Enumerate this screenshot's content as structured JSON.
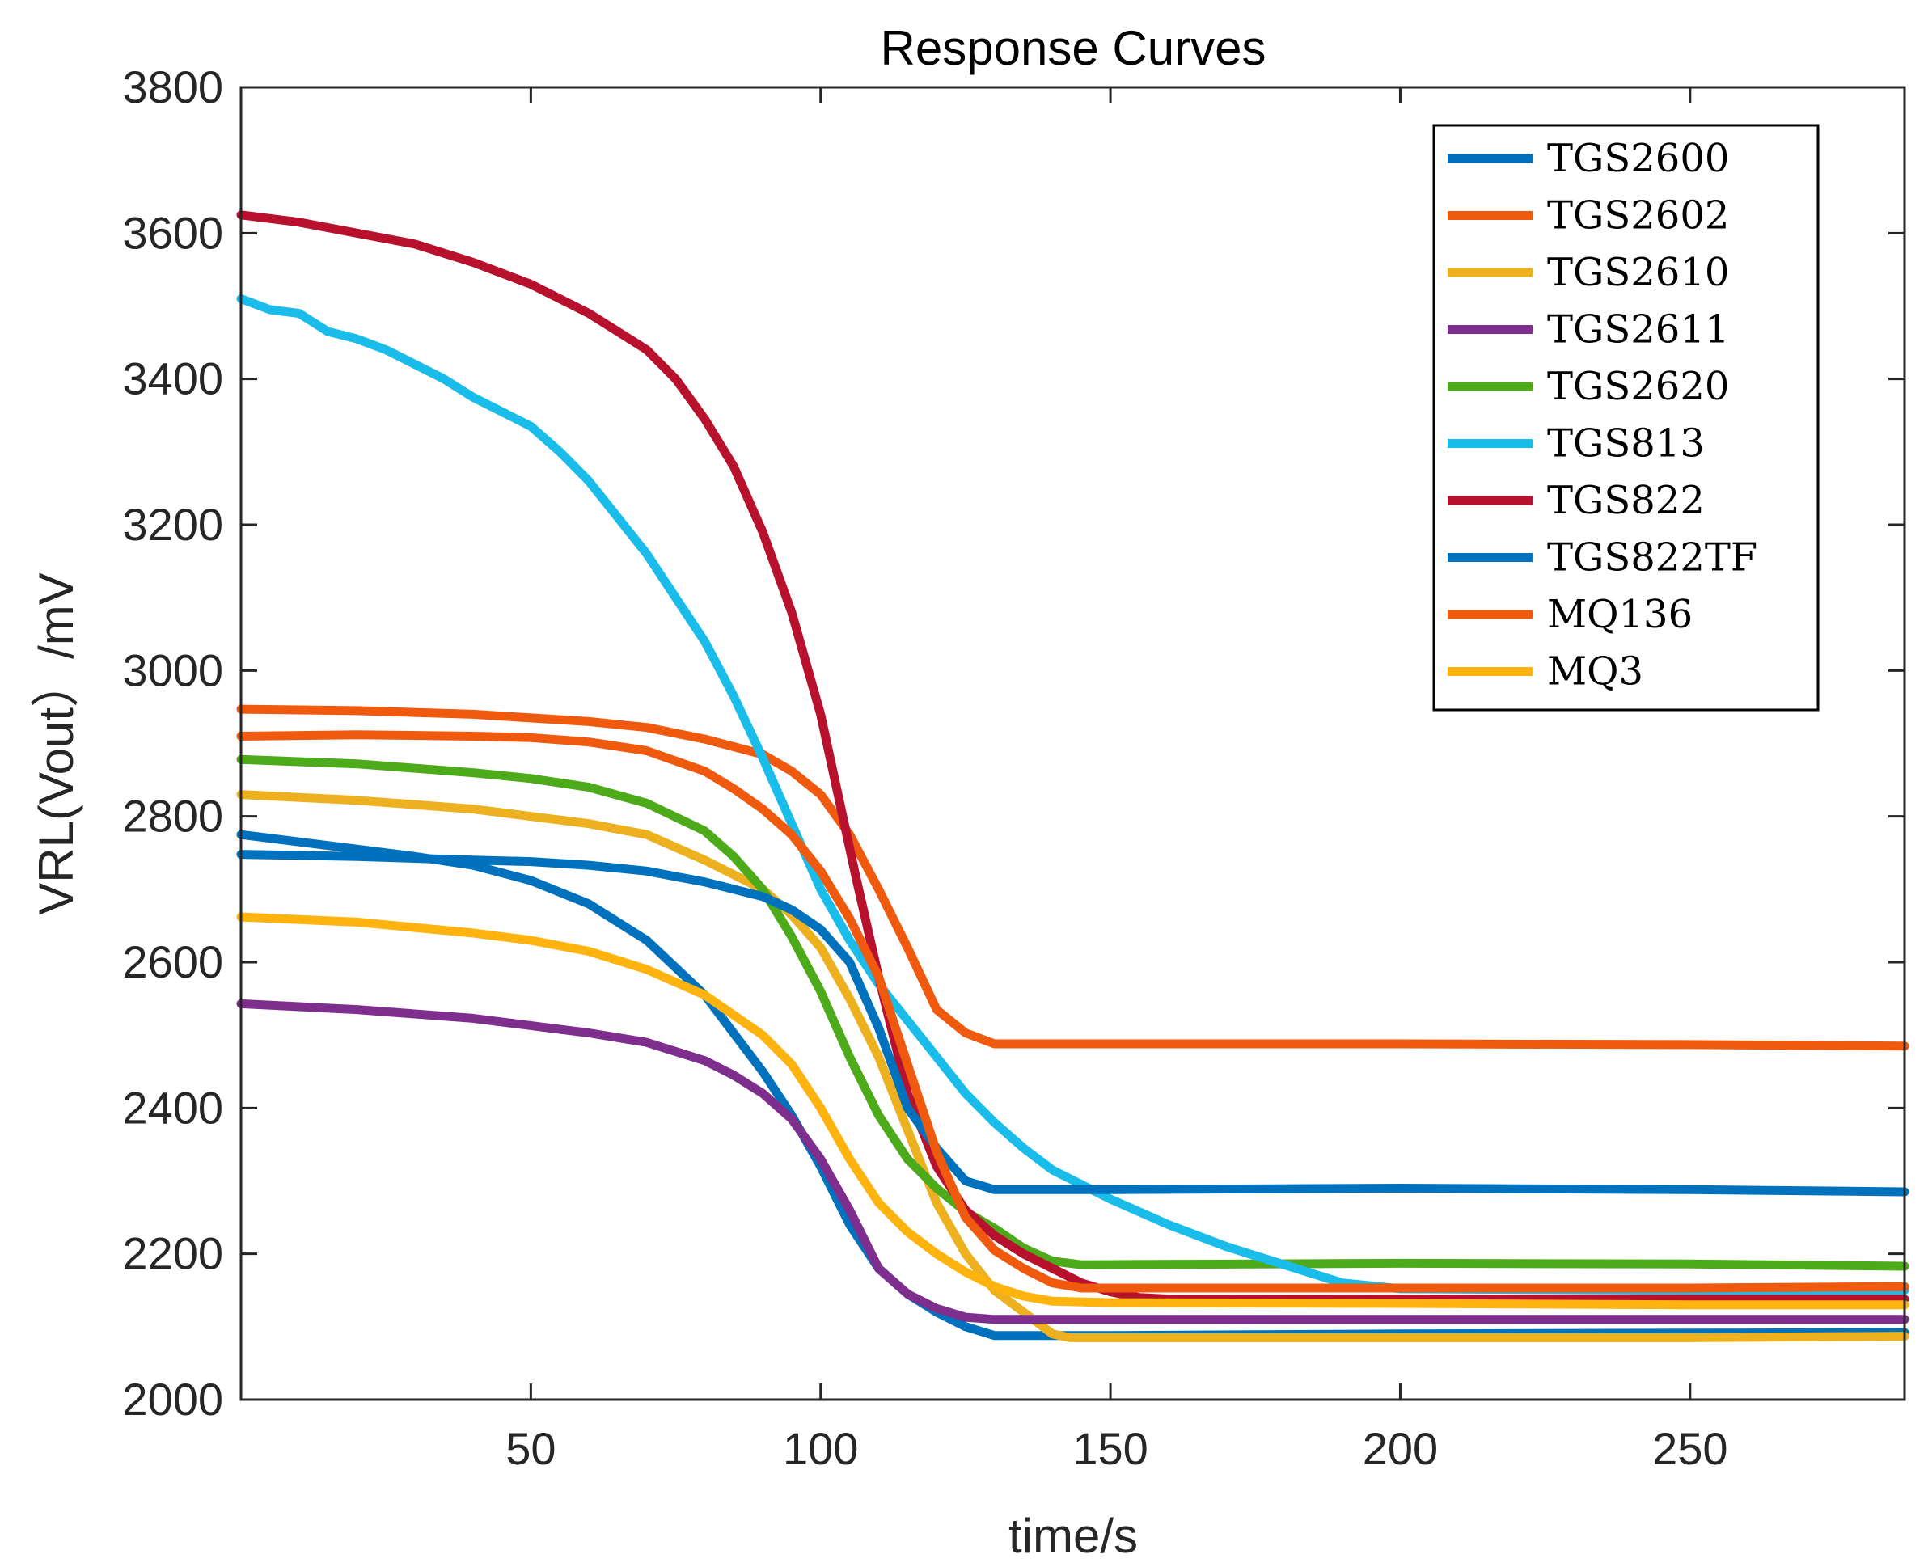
{
  "chart_data": {
    "type": "line",
    "title": "Response Curves",
    "xlabel": "time/s",
    "ylabel": "VRL(Vout）/mV",
    "xlim": [
      0,
      287
    ],
    "ylim": [
      2000,
      3800
    ],
    "xticks": [
      50,
      100,
      150,
      200,
      250
    ],
    "yticks": [
      2000,
      2200,
      2400,
      2600,
      2800,
      3000,
      3200,
      3400,
      3600,
      3800
    ],
    "grid": false,
    "legend_position": "top-right",
    "series": [
      {
        "name": "TGS2600",
        "color": "#0072BD",
        "points": [
          [
            0,
            2775
          ],
          [
            10,
            2765
          ],
          [
            20,
            2755
          ],
          [
            30,
            2745
          ],
          [
            40,
            2733
          ],
          [
            50,
            2712
          ],
          [
            60,
            2680
          ],
          [
            70,
            2630
          ],
          [
            80,
            2555
          ],
          [
            90,
            2450
          ],
          [
            95,
            2390
          ],
          [
            100,
            2320
          ],
          [
            105,
            2240
          ],
          [
            110,
            2180
          ],
          [
            115,
            2145
          ],
          [
            120,
            2120
          ],
          [
            125,
            2100
          ],
          [
            130,
            2088
          ],
          [
            150,
            2088
          ],
          [
            200,
            2090
          ],
          [
            287,
            2092
          ]
        ]
      },
      {
        "name": "TGS2602",
        "color": "#F05A0F",
        "points": [
          [
            0,
            2947
          ],
          [
            20,
            2945
          ],
          [
            40,
            2940
          ],
          [
            60,
            2930
          ],
          [
            70,
            2922
          ],
          [
            80,
            2906
          ],
          [
            90,
            2885
          ],
          [
            95,
            2862
          ],
          [
            100,
            2830
          ],
          [
            105,
            2775
          ],
          [
            110,
            2700
          ],
          [
            115,
            2620
          ],
          [
            120,
            2535
          ],
          [
            125,
            2503
          ],
          [
            130,
            2488
          ],
          [
            150,
            2488
          ],
          [
            200,
            2488
          ],
          [
            250,
            2487
          ],
          [
            287,
            2485
          ]
        ]
      },
      {
        "name": "TGS2610",
        "color": "#EDB120",
        "points": [
          [
            0,
            2830
          ],
          [
            20,
            2822
          ],
          [
            40,
            2810
          ],
          [
            60,
            2790
          ],
          [
            70,
            2775
          ],
          [
            80,
            2740
          ],
          [
            90,
            2700
          ],
          [
            95,
            2665
          ],
          [
            100,
            2620
          ],
          [
            105,
            2550
          ],
          [
            110,
            2470
          ],
          [
            115,
            2370
          ],
          [
            120,
            2270
          ],
          [
            125,
            2200
          ],
          [
            130,
            2150
          ],
          [
            135,
            2120
          ],
          [
            140,
            2090
          ],
          [
            143,
            2085
          ],
          [
            200,
            2085
          ],
          [
            250,
            2085
          ],
          [
            287,
            2087
          ]
        ]
      },
      {
        "name": "TGS2611",
        "color": "#7E2F8E",
        "points": [
          [
            0,
            2543
          ],
          [
            20,
            2535
          ],
          [
            40,
            2523
          ],
          [
            60,
            2503
          ],
          [
            70,
            2490
          ],
          [
            80,
            2465
          ],
          [
            85,
            2445
          ],
          [
            90,
            2420
          ],
          [
            95,
            2385
          ],
          [
            100,
            2330
          ],
          [
            105,
            2260
          ],
          [
            110,
            2180
          ],
          [
            115,
            2145
          ],
          [
            120,
            2125
          ],
          [
            125,
            2113
          ],
          [
            130,
            2110
          ],
          [
            200,
            2110
          ],
          [
            287,
            2110
          ]
        ]
      },
      {
        "name": "TGS2620",
        "color": "#4DAA1A",
        "points": [
          [
            0,
            2878
          ],
          [
            20,
            2872
          ],
          [
            40,
            2860
          ],
          [
            50,
            2852
          ],
          [
            60,
            2840
          ],
          [
            70,
            2818
          ],
          [
            80,
            2780
          ],
          [
            85,
            2745
          ],
          [
            90,
            2700
          ],
          [
            95,
            2635
          ],
          [
            100,
            2560
          ],
          [
            105,
            2470
          ],
          [
            110,
            2390
          ],
          [
            115,
            2330
          ],
          [
            120,
            2290
          ],
          [
            125,
            2258
          ],
          [
            130,
            2235
          ],
          [
            135,
            2208
          ],
          [
            140,
            2190
          ],
          [
            145,
            2185
          ],
          [
            200,
            2187
          ],
          [
            250,
            2186
          ],
          [
            287,
            2183
          ]
        ]
      },
      {
        "name": "TGS813",
        "color": "#1ABCEA",
        "points": [
          [
            0,
            3510
          ],
          [
            5,
            3495
          ],
          [
            10,
            3490
          ],
          [
            15,
            3465
          ],
          [
            20,
            3455
          ],
          [
            25,
            3440
          ],
          [
            30,
            3420
          ],
          [
            35,
            3400
          ],
          [
            40,
            3375
          ],
          [
            45,
            3355
          ],
          [
            50,
            3335
          ],
          [
            55,
            3300
          ],
          [
            60,
            3260
          ],
          [
            65,
            3210
          ],
          [
            70,
            3160
          ],
          [
            75,
            3100
          ],
          [
            80,
            3040
          ],
          [
            85,
            2965
          ],
          [
            90,
            2880
          ],
          [
            95,
            2790
          ],
          [
            100,
            2700
          ],
          [
            105,
            2630
          ],
          [
            110,
            2570
          ],
          [
            115,
            2520
          ],
          [
            120,
            2470
          ],
          [
            125,
            2420
          ],
          [
            130,
            2380
          ],
          [
            135,
            2345
          ],
          [
            140,
            2315
          ],
          [
            145,
            2295
          ],
          [
            150,
            2275
          ],
          [
            160,
            2240
          ],
          [
            170,
            2210
          ],
          [
            180,
            2185
          ],
          [
            190,
            2160
          ],
          [
            200,
            2152
          ],
          [
            250,
            2150
          ],
          [
            287,
            2150
          ]
        ]
      },
      {
        "name": "TGS822",
        "color": "#B8112E",
        "points": [
          [
            0,
            3625
          ],
          [
            10,
            3615
          ],
          [
            20,
            3600
          ],
          [
            30,
            3585
          ],
          [
            40,
            3560
          ],
          [
            50,
            3530
          ],
          [
            60,
            3490
          ],
          [
            70,
            3440
          ],
          [
            75,
            3400
          ],
          [
            80,
            3345
          ],
          [
            85,
            3280
          ],
          [
            90,
            3190
          ],
          [
            95,
            3080
          ],
          [
            100,
            2940
          ],
          [
            103,
            2830
          ],
          [
            106,
            2720
          ],
          [
            110,
            2580
          ],
          [
            115,
            2420
          ],
          [
            120,
            2320
          ],
          [
            125,
            2260
          ],
          [
            130,
            2225
          ],
          [
            135,
            2200
          ],
          [
            140,
            2180
          ],
          [
            145,
            2160
          ],
          [
            150,
            2148
          ],
          [
            155,
            2140
          ],
          [
            160,
            2138
          ],
          [
            200,
            2138
          ],
          [
            250,
            2138
          ],
          [
            287,
            2138
          ]
        ]
      },
      {
        "name": "TGS822TF",
        "color": "#0072BD",
        "points": [
          [
            0,
            2748
          ],
          [
            20,
            2745
          ],
          [
            40,
            2740
          ],
          [
            50,
            2738
          ],
          [
            60,
            2733
          ],
          [
            70,
            2725
          ],
          [
            80,
            2710
          ],
          [
            90,
            2690
          ],
          [
            95,
            2672
          ],
          [
            100,
            2645
          ],
          [
            105,
            2600
          ],
          [
            110,
            2510
          ],
          [
            115,
            2400
          ],
          [
            120,
            2345
          ],
          [
            125,
            2300
          ],
          [
            130,
            2288
          ],
          [
            150,
            2288
          ],
          [
            200,
            2290
          ],
          [
            250,
            2288
          ],
          [
            287,
            2285
          ]
        ]
      },
      {
        "name": "MQ136",
        "color": "#F05A0F",
        "points": [
          [
            0,
            2910
          ],
          [
            20,
            2912
          ],
          [
            40,
            2910
          ],
          [
            50,
            2908
          ],
          [
            60,
            2902
          ],
          [
            70,
            2890
          ],
          [
            80,
            2862
          ],
          [
            85,
            2838
          ],
          [
            90,
            2810
          ],
          [
            95,
            2775
          ],
          [
            100,
            2725
          ],
          [
            105,
            2660
          ],
          [
            110,
            2580
          ],
          [
            115,
            2460
          ],
          [
            120,
            2340
          ],
          [
            125,
            2250
          ],
          [
            130,
            2205
          ],
          [
            135,
            2180
          ],
          [
            140,
            2160
          ],
          [
            145,
            2153
          ],
          [
            200,
            2153
          ],
          [
            250,
            2153
          ],
          [
            287,
            2155
          ]
        ]
      },
      {
        "name": "MQ3",
        "color": "#FFB30F",
        "points": [
          [
            0,
            2662
          ],
          [
            20,
            2655
          ],
          [
            40,
            2640
          ],
          [
            50,
            2630
          ],
          [
            60,
            2615
          ],
          [
            70,
            2590
          ],
          [
            80,
            2555
          ],
          [
            90,
            2500
          ],
          [
            95,
            2460
          ],
          [
            100,
            2400
          ],
          [
            105,
            2330
          ],
          [
            110,
            2270
          ],
          [
            115,
            2230
          ],
          [
            120,
            2200
          ],
          [
            125,
            2175
          ],
          [
            130,
            2155
          ],
          [
            135,
            2142
          ],
          [
            140,
            2135
          ],
          [
            150,
            2133
          ],
          [
            200,
            2132
          ],
          [
            250,
            2130
          ],
          [
            287,
            2130
          ]
        ]
      }
    ]
  }
}
